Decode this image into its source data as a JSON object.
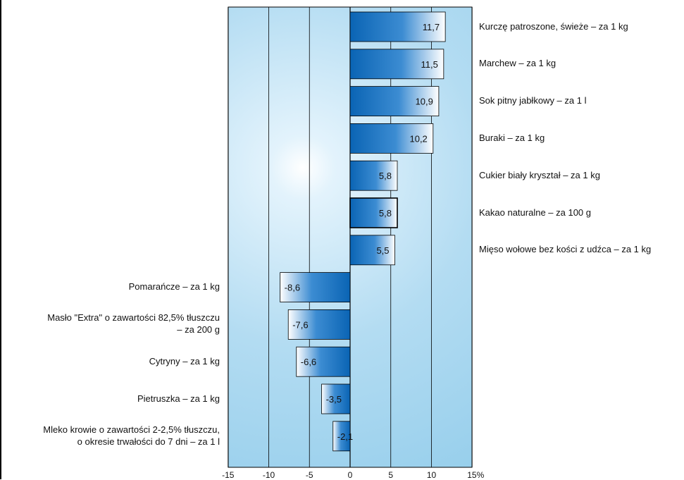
{
  "chart_data": {
    "type": "bar",
    "orientation": "horizontal",
    "categories": [
      "Kurczę patroszone, świeże – za 1 kg",
      "Marchew – za 1 kg",
      "Sok pitny jabłkowy – za 1 l",
      "Buraki – za 1 kg",
      "Cukier biały kryształ – za 1 kg",
      "Kakao naturalne – za 100 g",
      "Mięso wołowe bez kości z udźca – za 1 kg",
      "Pomarańcze – za 1 kg",
      "Masło \"Extra\" o zawartości 82,5% tłuszczu\n– za 200 g",
      "Cytryny – za 1 kg",
      "Pietruszka – za 1 kg",
      "Mleko krowie o zawartości 2-2,5% tłuszczu,\no okresie trwałości do 7 dni – za 1 l"
    ],
    "values": [
      11.7,
      11.5,
      10.9,
      10.2,
      5.8,
      5.8,
      5.5,
      -8.6,
      -7.6,
      -6.6,
      -3.5,
      -2.1
    ],
    "value_labels": [
      "11,7",
      "11,5",
      "10,9",
      "10,2",
      "5,8",
      "5,8",
      "5,5",
      "-8,6",
      "-7,6",
      "-6,6",
      "-3,5",
      "-2,1"
    ],
    "xticks": [
      "-15",
      "-10",
      "-5",
      "0",
      "5",
      "10",
      "15%"
    ],
    "xlim": [
      -15,
      15
    ],
    "grid": true,
    "colors": {
      "bar_dark": "#0a64b4",
      "bar_mid": "#3c8cd2",
      "bar_light": "#ffffff",
      "plot_bg_center": "#ffffff",
      "plot_bg_edge": "#8fcbea",
      "grid": "#000000"
    }
  }
}
